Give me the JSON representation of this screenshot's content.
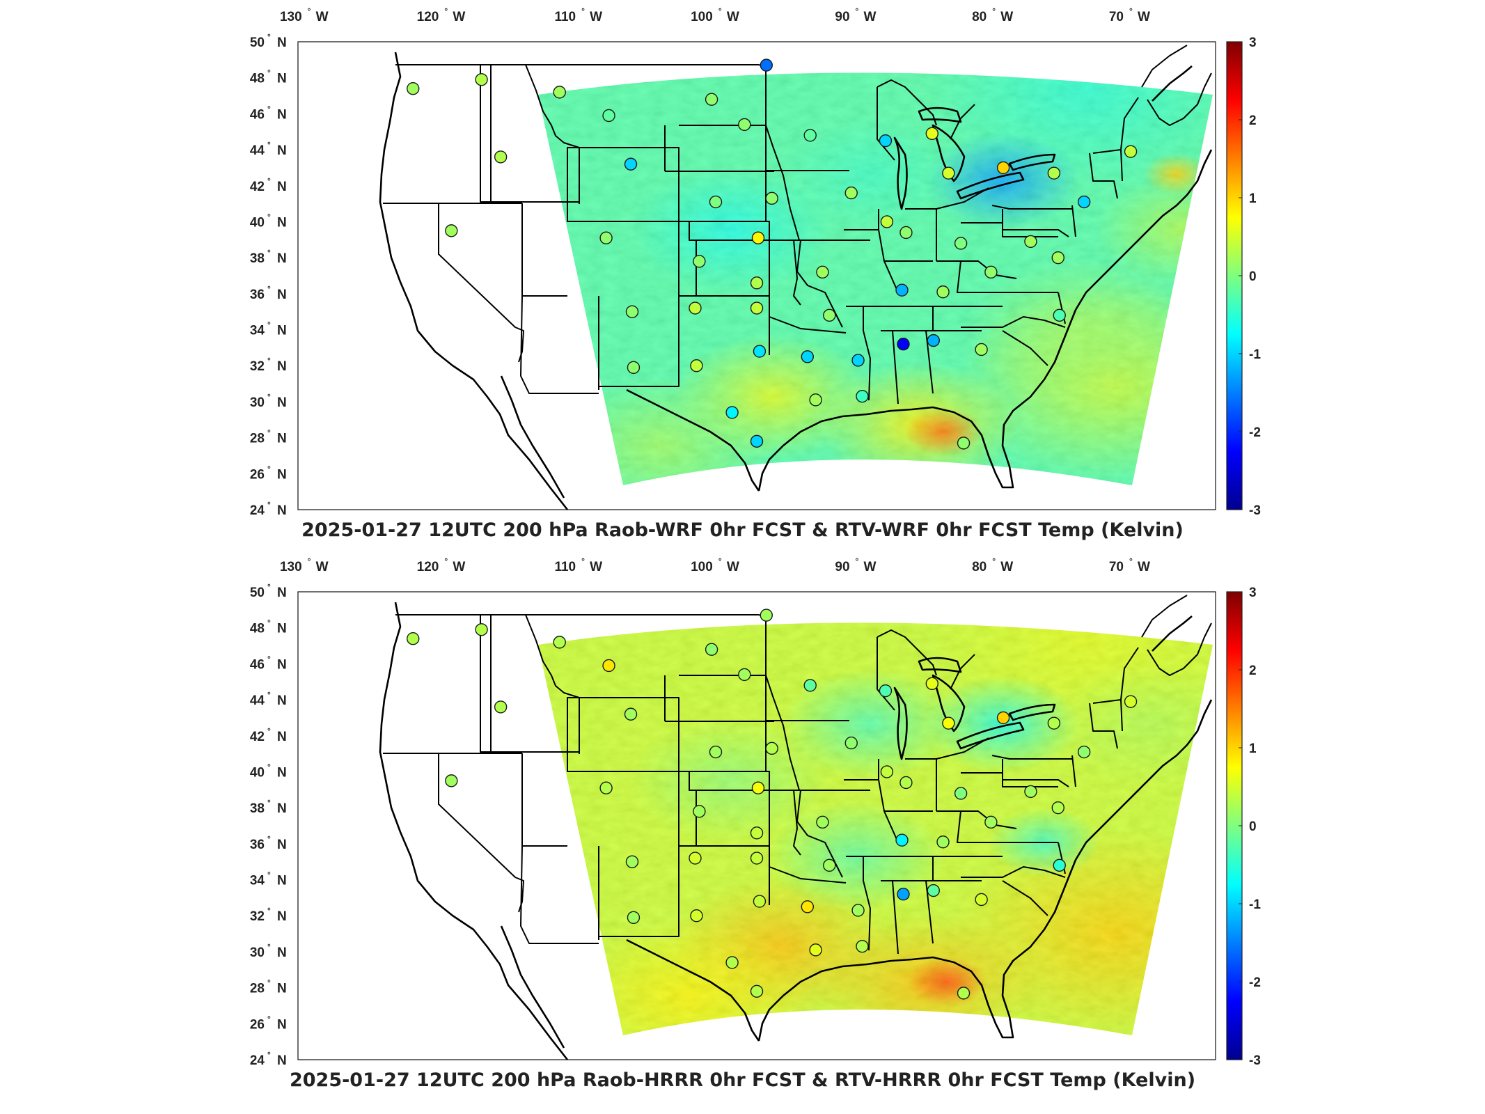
{
  "panels": [
    {
      "title": "2025-01-27 12UTC 200 hPa Raob-WRF 0hr FCST & RTV-WRF 0hr FCST Temp (Kelvin)",
      "field_bias": -0.25,
      "stations": [
        {
          "lon": -122.6,
          "lat": 47.4,
          "v": 0.2
        },
        {
          "lon": -117.6,
          "lat": 47.9,
          "v": 0.3
        },
        {
          "lon": -111.9,
          "lat": 47.2,
          "v": 0.2
        },
        {
          "lon": -108.3,
          "lat": 45.9,
          "v": -0.2
        },
        {
          "lon": -100.8,
          "lat": 46.8,
          "v": 0.1
        },
        {
          "lon": -98.4,
          "lat": 45.4,
          "v": 0.1
        },
        {
          "lon": -96.8,
          "lat": 48.7,
          "v": -1.6
        },
        {
          "lon": -93.6,
          "lat": 44.8,
          "v": -0.2
        },
        {
          "lon": -88.1,
          "lat": 44.5,
          "v": -1.0
        },
        {
          "lon": -84.7,
          "lat": 44.9,
          "v": 0.6
        },
        {
          "lon": -116.2,
          "lat": 43.6,
          "v": 0.3
        },
        {
          "lon": -106.7,
          "lat": 43.2,
          "v": -1.0
        },
        {
          "lon": -100.5,
          "lat": 41.1,
          "v": 0.0
        },
        {
          "lon": -96.4,
          "lat": 41.3,
          "v": 0.1
        },
        {
          "lon": -90.6,
          "lat": 41.6,
          "v": 0.2
        },
        {
          "lon": -88.0,
          "lat": 40.0,
          "v": 0.4
        },
        {
          "lon": -83.5,
          "lat": 42.7,
          "v": 0.5
        },
        {
          "lon": -79.5,
          "lat": 43.0,
          "v": 1.0
        },
        {
          "lon": -75.8,
          "lat": 42.7,
          "v": 0.3
        },
        {
          "lon": -73.6,
          "lat": 41.1,
          "v": -1.0
        },
        {
          "lon": -70.2,
          "lat": 43.9,
          "v": 0.4
        },
        {
          "lon": -119.8,
          "lat": 39.5,
          "v": 0.2
        },
        {
          "lon": -108.5,
          "lat": 39.1,
          "v": 0.1
        },
        {
          "lon": -101.7,
          "lat": 37.8,
          "v": 0.1
        },
        {
          "lon": -97.4,
          "lat": 39.1,
          "v": 0.8
        },
        {
          "lon": -92.7,
          "lat": 37.2,
          "v": 0.2
        },
        {
          "lon": -86.6,
          "lat": 39.4,
          "v": 0.1
        },
        {
          "lon": -82.6,
          "lat": 38.8,
          "v": 0.0
        },
        {
          "lon": -77.5,
          "lat": 38.9,
          "v": 0.2
        },
        {
          "lon": -75.5,
          "lat": 38.0,
          "v": 0.2
        },
        {
          "lon": -106.6,
          "lat": 35.0,
          "v": 0.1
        },
        {
          "lon": -102.0,
          "lat": 35.2,
          "v": 0.4
        },
        {
          "lon": -97.5,
          "lat": 35.2,
          "v": 0.4
        },
        {
          "lon": -97.5,
          "lat": 36.6,
          "v": 0.3
        },
        {
          "lon": -92.2,
          "lat": 34.8,
          "v": 0.1
        },
        {
          "lon": -86.9,
          "lat": 36.2,
          "v": -1.2
        },
        {
          "lon": -83.9,
          "lat": 36.1,
          "v": 0.2
        },
        {
          "lon": -80.4,
          "lat": 37.2,
          "v": 0.1
        },
        {
          "lon": -75.4,
          "lat": 34.8,
          "v": -0.3
        },
        {
          "lon": -106.5,
          "lat": 31.9,
          "v": 0.1
        },
        {
          "lon": -101.9,
          "lat": 32.0,
          "v": 0.4
        },
        {
          "lon": -97.3,
          "lat": 32.8,
          "v": -0.9
        },
        {
          "lon": -93.8,
          "lat": 32.5,
          "v": -1.0
        },
        {
          "lon": -90.1,
          "lat": 32.3,
          "v": -1.0
        },
        {
          "lon": -86.8,
          "lat": 33.2,
          "v": -2.3
        },
        {
          "lon": -84.6,
          "lat": 33.4,
          "v": -1.2
        },
        {
          "lon": -81.1,
          "lat": 32.9,
          "v": 0.2
        },
        {
          "lon": -99.3,
          "lat": 29.4,
          "v": -0.8
        },
        {
          "lon": -93.2,
          "lat": 30.1,
          "v": 0.2
        },
        {
          "lon": -89.8,
          "lat": 30.3,
          "v": -0.4
        },
        {
          "lon": -97.5,
          "lat": 27.8,
          "v": -1.0
        },
        {
          "lon": -82.4,
          "lat": 27.7,
          "v": 0.1
        }
      ]
    },
    {
      "title": "2025-01-27 12UTC 200 hPa Raob-HRRR 0hr FCST & RTV-HRRR 0hr FCST Temp (Kelvin)",
      "field_bias": 0.45,
      "stations": [
        {
          "lon": -122.6,
          "lat": 47.4,
          "v": 0.3
        },
        {
          "lon": -117.6,
          "lat": 47.9,
          "v": 0.3
        },
        {
          "lon": -111.9,
          "lat": 47.2,
          "v": 0.3
        },
        {
          "lon": -108.3,
          "lat": 45.9,
          "v": 0.9
        },
        {
          "lon": -100.8,
          "lat": 46.8,
          "v": 0.1
        },
        {
          "lon": -98.4,
          "lat": 45.4,
          "v": 0.2
        },
        {
          "lon": -96.8,
          "lat": 48.7,
          "v": 0.2
        },
        {
          "lon": -93.6,
          "lat": 44.8,
          "v": -0.2
        },
        {
          "lon": -88.1,
          "lat": 44.5,
          "v": -0.3
        },
        {
          "lon": -84.7,
          "lat": 44.9,
          "v": 0.6
        },
        {
          "lon": -116.2,
          "lat": 43.6,
          "v": 0.3
        },
        {
          "lon": -106.7,
          "lat": 43.2,
          "v": 0.2
        },
        {
          "lon": -100.5,
          "lat": 41.1,
          "v": 0.2
        },
        {
          "lon": -96.4,
          "lat": 41.3,
          "v": 0.3
        },
        {
          "lon": -90.6,
          "lat": 41.6,
          "v": 0.1
        },
        {
          "lon": -88.0,
          "lat": 40.0,
          "v": 0.4
        },
        {
          "lon": -83.5,
          "lat": 42.7,
          "v": 0.7
        },
        {
          "lon": -79.5,
          "lat": 43.0,
          "v": 1.0
        },
        {
          "lon": -75.8,
          "lat": 42.7,
          "v": 0.3
        },
        {
          "lon": -73.6,
          "lat": 41.1,
          "v": 0.1
        },
        {
          "lon": -70.2,
          "lat": 43.9,
          "v": 0.5
        },
        {
          "lon": -119.8,
          "lat": 39.5,
          "v": 0.2
        },
        {
          "lon": -108.5,
          "lat": 39.1,
          "v": 0.3
        },
        {
          "lon": -101.7,
          "lat": 37.8,
          "v": 0.2
        },
        {
          "lon": -97.4,
          "lat": 39.1,
          "v": 0.7
        },
        {
          "lon": -92.7,
          "lat": 37.2,
          "v": 0.2
        },
        {
          "lon": -86.6,
          "lat": 39.4,
          "v": 0.3
        },
        {
          "lon": -82.6,
          "lat": 38.8,
          "v": 0.0
        },
        {
          "lon": -77.5,
          "lat": 38.9,
          "v": 0.2
        },
        {
          "lon": -75.5,
          "lat": 38.0,
          "v": 0.3
        },
        {
          "lon": -106.6,
          "lat": 35.0,
          "v": 0.2
        },
        {
          "lon": -102.0,
          "lat": 35.2,
          "v": 0.5
        },
        {
          "lon": -97.5,
          "lat": 35.2,
          "v": 0.4
        },
        {
          "lon": -97.5,
          "lat": 36.6,
          "v": 0.4
        },
        {
          "lon": -92.2,
          "lat": 34.8,
          "v": 0.2
        },
        {
          "lon": -86.9,
          "lat": 36.2,
          "v": -0.8
        },
        {
          "lon": -83.9,
          "lat": 36.1,
          "v": 0.2
        },
        {
          "lon": -80.4,
          "lat": 37.2,
          "v": 0.2
        },
        {
          "lon": -75.4,
          "lat": 34.8,
          "v": -0.5
        },
        {
          "lon": -106.5,
          "lat": 31.9,
          "v": 0.2
        },
        {
          "lon": -101.9,
          "lat": 32.0,
          "v": 0.5
        },
        {
          "lon": -97.3,
          "lat": 32.8,
          "v": 0.4
        },
        {
          "lon": -93.8,
          "lat": 32.5,
          "v": 0.9
        },
        {
          "lon": -90.1,
          "lat": 32.3,
          "v": 0.2
        },
        {
          "lon": -86.8,
          "lat": 33.2,
          "v": -1.3
        },
        {
          "lon": -84.6,
          "lat": 33.4,
          "v": -0.2
        },
        {
          "lon": -81.1,
          "lat": 32.9,
          "v": 0.5
        },
        {
          "lon": -99.3,
          "lat": 29.4,
          "v": 0.3
        },
        {
          "lon": -93.2,
          "lat": 30.1,
          "v": 0.6
        },
        {
          "lon": -89.8,
          "lat": 30.3,
          "v": 0.3
        },
        {
          "lon": -97.5,
          "lat": 27.8,
          "v": 0.3
        },
        {
          "lon": -82.4,
          "lat": 27.7,
          "v": 0.3
        }
      ]
    }
  ],
  "axes": {
    "lon_ticks": [
      {
        "lon": -130,
        "deg": "130",
        "hem": "W"
      },
      {
        "lon": -120,
        "deg": "120",
        "hem": "W"
      },
      {
        "lon": -110,
        "deg": "110",
        "hem": "W"
      },
      {
        "lon": -100,
        "deg": "100",
        "hem": "W"
      },
      {
        "lon": -90,
        "deg": "90",
        "hem": "W"
      },
      {
        "lon": -80,
        "deg": "80",
        "hem": "W"
      },
      {
        "lon": -70,
        "deg": "70",
        "hem": "W"
      }
    ],
    "lat_ticks": [
      {
        "lat": 50,
        "deg": "50",
        "hem": "N"
      },
      {
        "lat": 48,
        "deg": "48",
        "hem": "N"
      },
      {
        "lat": 46,
        "deg": "46",
        "hem": "N"
      },
      {
        "lat": 44,
        "deg": "44",
        "hem": "N"
      },
      {
        "lat": 42,
        "deg": "42",
        "hem": "N"
      },
      {
        "lat": 40,
        "deg": "40",
        "hem": "N"
      },
      {
        "lat": 38,
        "deg": "38",
        "hem": "N"
      },
      {
        "lat": 36,
        "deg": "36",
        "hem": "N"
      },
      {
        "lat": 34,
        "deg": "34",
        "hem": "N"
      },
      {
        "lat": 32,
        "deg": "32",
        "hem": "N"
      },
      {
        "lat": 30,
        "deg": "30",
        "hem": "N"
      },
      {
        "lat": 28,
        "deg": "28",
        "hem": "N"
      },
      {
        "lat": 26,
        "deg": "26",
        "hem": "N"
      },
      {
        "lat": 24,
        "deg": "24",
        "hem": "N"
      }
    ],
    "lon_range": [
      -131,
      -64
    ],
    "lat_range": [
      24,
      50
    ]
  },
  "colorbar": {
    "range": [
      -3,
      3
    ],
    "ticks": [
      "3",
      "2",
      "1",
      "0",
      "-1",
      "-2",
      "-3"
    ],
    "colormap": "jet",
    "stops": [
      "#00008f",
      "#0000ff",
      "#007fff",
      "#00ffff",
      "#7fff7f",
      "#ffff00",
      "#ff7f00",
      "#ff0000",
      "#7f0000"
    ]
  }
}
